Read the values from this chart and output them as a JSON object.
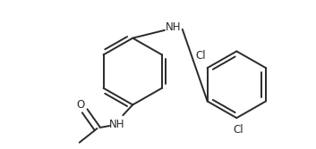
{
  "bg_color": "#ffffff",
  "line_color": "#2a2a2a",
  "text_color": "#2a2a2a",
  "figsize": [
    3.53,
    1.67
  ],
  "dpi": 100,
  "xlim": [
    0,
    353
  ],
  "ylim": [
    0,
    167
  ]
}
